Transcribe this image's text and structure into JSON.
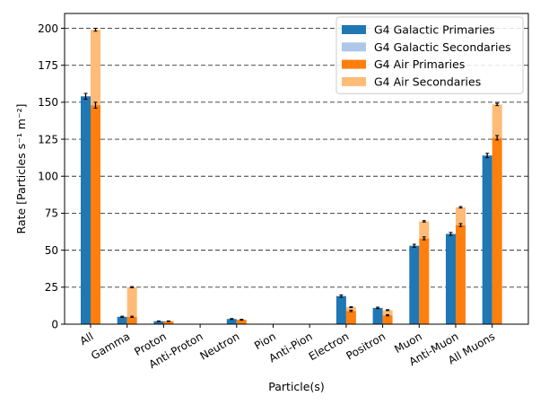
{
  "chart_data": {
    "type": "bar",
    "stacked": true,
    "xlabel": "Particle(s)",
    "ylabel": "Rate [Particles s⁻¹ m⁻²]",
    "ylim": [
      0,
      210
    ],
    "yticks": [
      0,
      25,
      50,
      75,
      100,
      125,
      150,
      175,
      200
    ],
    "grid": "horizontal dashed",
    "legend_position": "top-right",
    "categories": [
      "All",
      "Gamma",
      "Proton",
      "Anti-Proton",
      "Neutron",
      "Pion",
      "Anti-Pion",
      "Electron",
      "Positron",
      "Muon",
      "Anti-Muon",
      "All Muons"
    ],
    "groups": [
      {
        "name": "G4 Galactic",
        "series": [
          {
            "name": "G4 Galactic Primaries",
            "color": "#1f77b4",
            "values": [
              154,
              5,
              2,
              0,
              3.5,
              0,
              0,
              19,
              11,
              53,
              61,
              114
            ],
            "errors": [
              2,
              0.4,
              0.2,
              0,
              0.3,
              0,
              0,
              0.8,
              0.5,
              1,
              1,
              1.5
            ]
          },
          {
            "name": "G4 Galactic Secondaries",
            "color": "#aec7e8",
            "values": [
              0,
              0,
              0,
              0,
              0,
              0,
              0,
              0,
              0,
              0,
              0,
              0
            ],
            "errors": [
              0,
              0,
              0,
              0,
              0,
              0,
              0,
              0,
              0,
              0,
              0,
              0
            ]
          }
        ]
      },
      {
        "name": "G4 Air",
        "series": [
          {
            "name": "G4 Air Primaries",
            "color": "#ff7f0e",
            "values": [
              148,
              5,
              2,
              0,
              3,
              0,
              0,
              9,
              6,
              58,
              67,
              126
            ],
            "errors": [
              2,
              0.4,
              0.2,
              0,
              0.3,
              0,
              0,
              0.5,
              0.4,
              1,
              1,
              1.5
            ]
          },
          {
            "name": "G4 Air Secondaries",
            "color": "#ffbb78",
            "values": [
              51,
              20,
              0,
              0,
              0,
              0,
              0,
              2.5,
              3.5,
              11.5,
              12,
              22.5
            ],
            "errors": [
              1,
              0.4,
              0,
              0,
              0,
              0,
              0,
              0.3,
              0.3,
              0.5,
              0.5,
              0.8
            ]
          }
        ]
      }
    ]
  }
}
